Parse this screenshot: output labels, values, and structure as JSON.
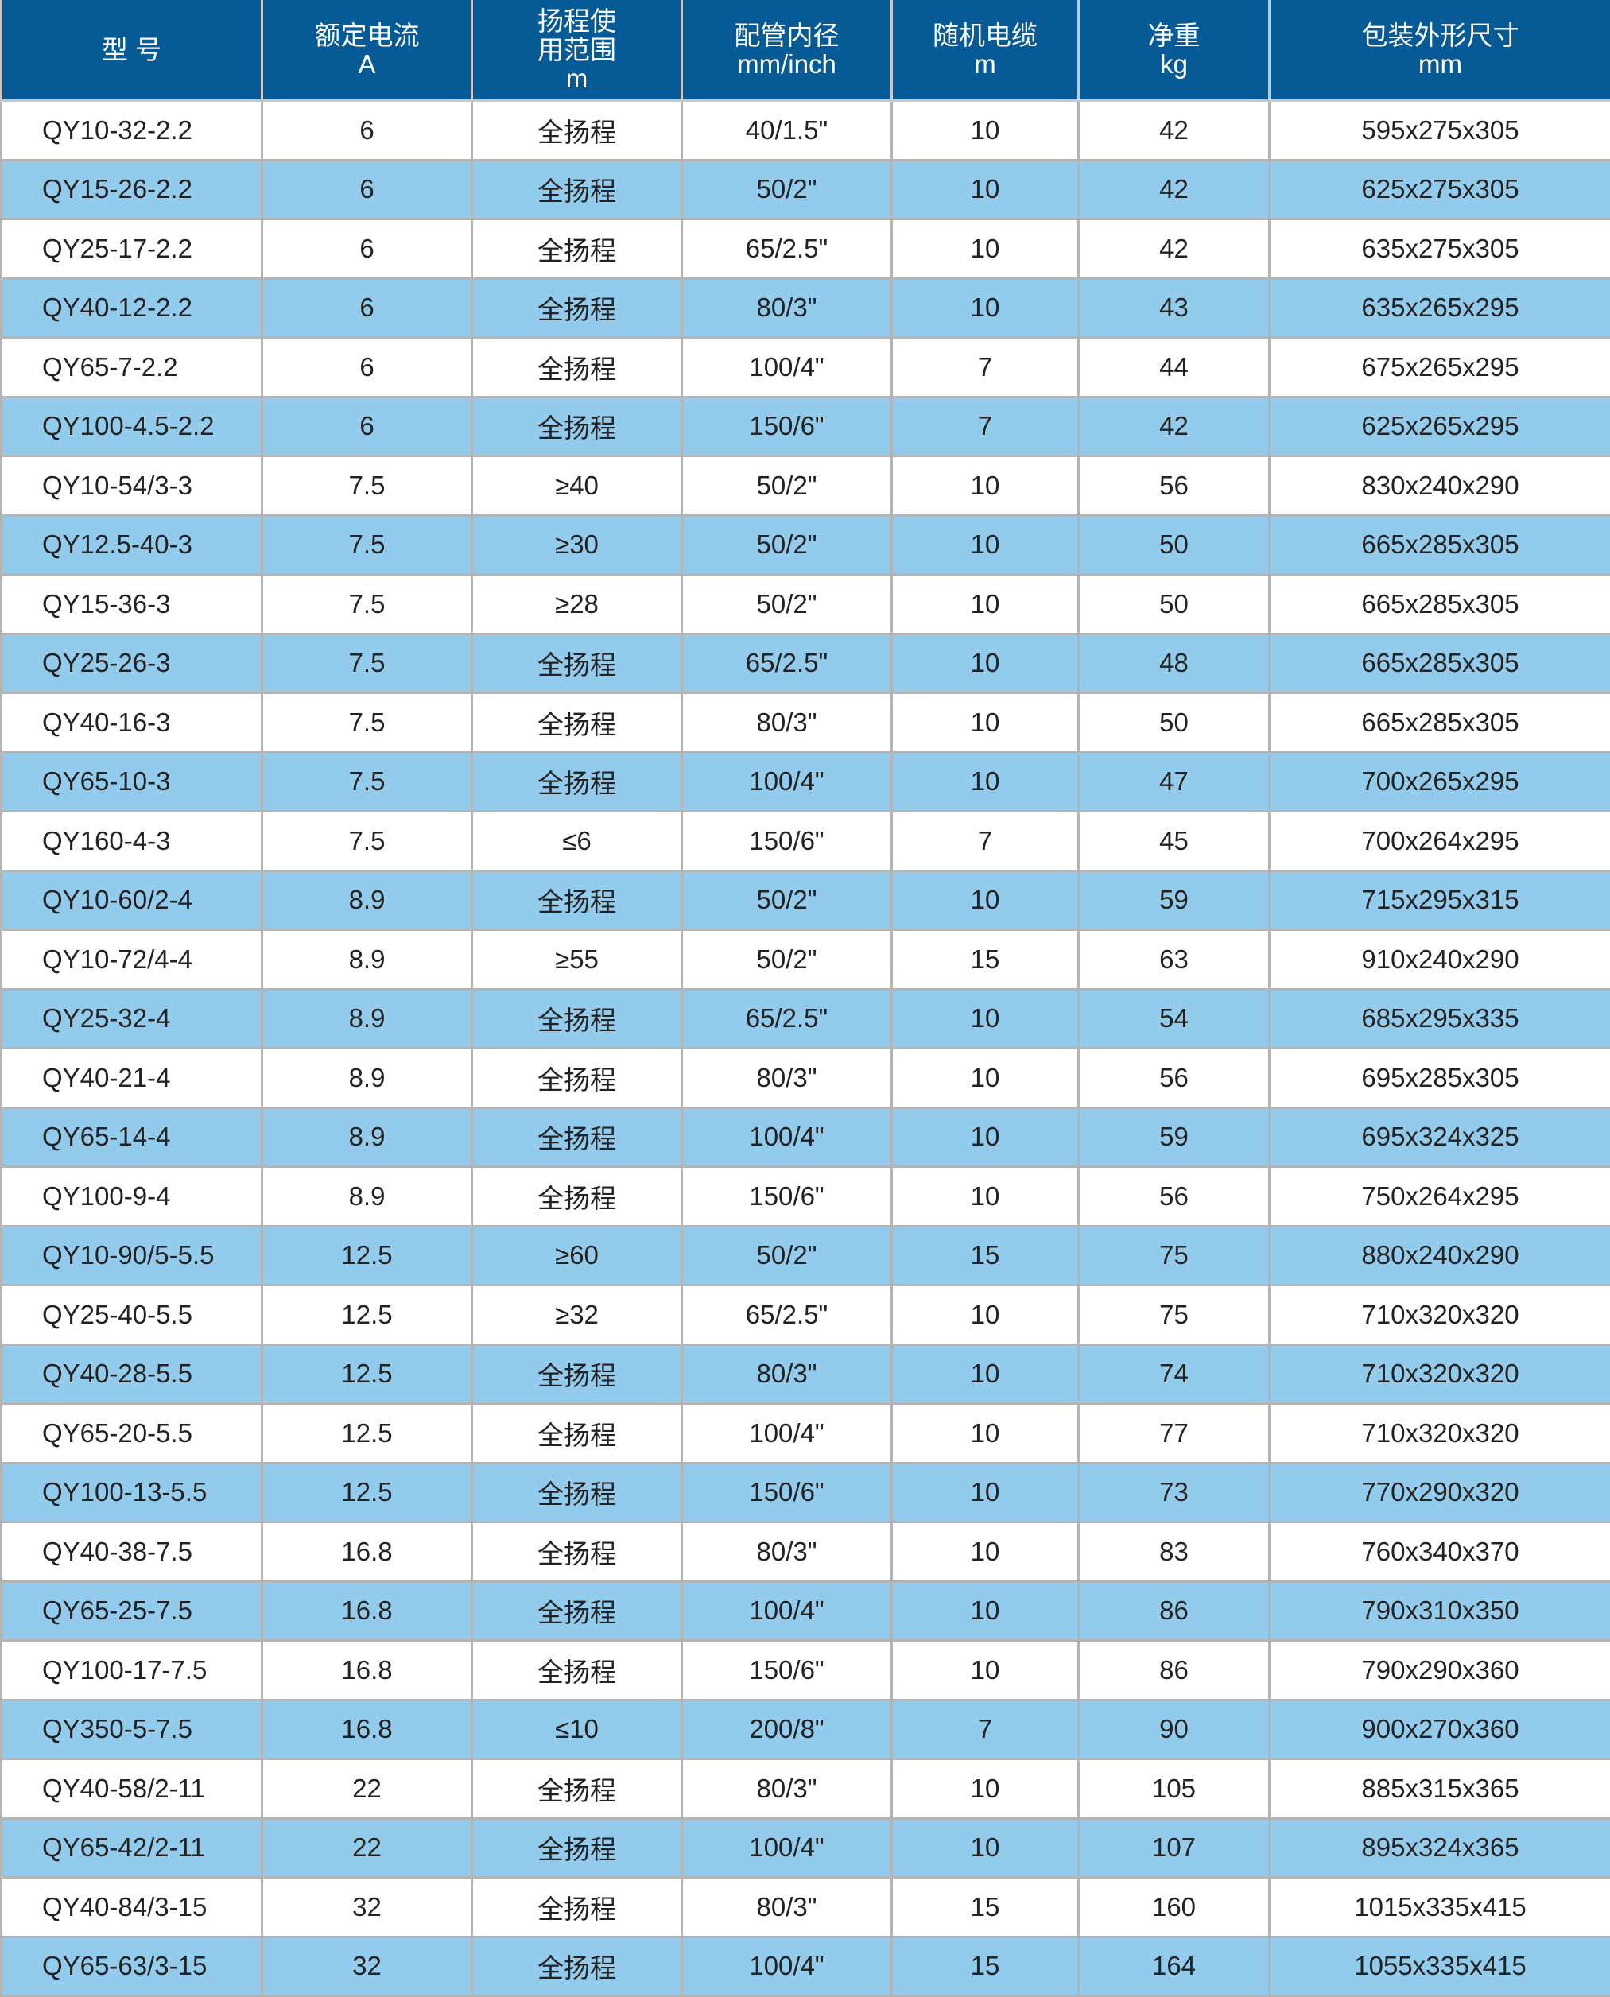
{
  "colors": {
    "header_bg": "#065a96",
    "alt_row_bg": "#93cbec",
    "row_bg": "#ffffff"
  },
  "headers": [
    [
      "型 号"
    ],
    [
      "额定电流",
      "A"
    ],
    [
      "扬程使",
      "用范围",
      "m"
    ],
    [
      "配管内径",
      "mm/inch"
    ],
    [
      "随机电缆",
      "m"
    ],
    [
      "净重",
      "kg"
    ],
    [
      "包装外形尺寸",
      "mm"
    ]
  ],
  "rows": [
    [
      "QY10-32-2.2",
      "6",
      "全扬程",
      "40/1.5\"",
      "10",
      "42",
      "595x275x305"
    ],
    [
      "QY15-26-2.2",
      "6",
      "全扬程",
      "50/2\"",
      "10",
      "42",
      "625x275x305"
    ],
    [
      "QY25-17-2.2",
      "6",
      "全扬程",
      "65/2.5\"",
      "10",
      "42",
      "635x275x305"
    ],
    [
      "QY40-12-2.2",
      "6",
      "全扬程",
      "80/3\"",
      "10",
      "43",
      "635x265x295"
    ],
    [
      "QY65-7-2.2",
      "6",
      "全扬程",
      "100/4\"",
      "7",
      "44",
      "675x265x295"
    ],
    [
      "QY100-4.5-2.2",
      "6",
      "全扬程",
      "150/6\"",
      "7",
      "42",
      "625x265x295"
    ],
    [
      "QY10-54/3-3",
      "7.5",
      "≥40",
      "50/2\"",
      "10",
      "56",
      "830x240x290"
    ],
    [
      "QY12.5-40-3",
      "7.5",
      "≥30",
      "50/2\"",
      "10",
      "50",
      "665x285x305"
    ],
    [
      "QY15-36-3",
      "7.5",
      "≥28",
      "50/2\"",
      "10",
      "50",
      "665x285x305"
    ],
    [
      "QY25-26-3",
      "7.5",
      "全扬程",
      "65/2.5\"",
      "10",
      "48",
      "665x285x305"
    ],
    [
      "QY40-16-3",
      "7.5",
      "全扬程",
      "80/3\"",
      "10",
      "50",
      "665x285x305"
    ],
    [
      "QY65-10-3",
      "7.5",
      "全扬程",
      "100/4\"",
      "10",
      "47",
      "700x265x295"
    ],
    [
      "QY160-4-3",
      "7.5",
      "≤6",
      "150/6\"",
      "7",
      "45",
      "700x264x295"
    ],
    [
      "QY10-60/2-4",
      "8.9",
      "全扬程",
      "50/2\"",
      "10",
      "59",
      "715x295x315"
    ],
    [
      "QY10-72/4-4",
      "8.9",
      "≥55",
      "50/2\"",
      "15",
      "63",
      "910x240x290"
    ],
    [
      "QY25-32-4",
      "8.9",
      "全扬程",
      "65/2.5\"",
      "10",
      "54",
      "685x295x335"
    ],
    [
      "QY40-21-4",
      "8.9",
      "全扬程",
      "80/3\"",
      "10",
      "56",
      "695x285x305"
    ],
    [
      "QY65-14-4",
      "8.9",
      "全扬程",
      "100/4\"",
      "10",
      "59",
      "695x324x325"
    ],
    [
      "QY100-9-4",
      "8.9",
      "全扬程",
      "150/6\"",
      "10",
      "56",
      "750x264x295"
    ],
    [
      "QY10-90/5-5.5",
      "12.5",
      "≥60",
      "50/2\"",
      "15",
      "75",
      "880x240x290"
    ],
    [
      "QY25-40-5.5",
      "12.5",
      "≥32",
      "65/2.5\"",
      "10",
      "75",
      "710x320x320"
    ],
    [
      "QY40-28-5.5",
      "12.5",
      "全扬程",
      "80/3\"",
      "10",
      "74",
      "710x320x320"
    ],
    [
      "QY65-20-5.5",
      "12.5",
      "全扬程",
      "100/4\"",
      "10",
      "77",
      "710x320x320"
    ],
    [
      "QY100-13-5.5",
      "12.5",
      "全扬程",
      "150/6\"",
      "10",
      "73",
      "770x290x320"
    ],
    [
      "QY40-38-7.5",
      "16.8",
      "全扬程",
      "80/3\"",
      "10",
      "83",
      "760x340x370"
    ],
    [
      "QY65-25-7.5",
      "16.8",
      "全扬程",
      "100/4\"",
      "10",
      "86",
      "790x310x350"
    ],
    [
      "QY100-17-7.5",
      "16.8",
      "全扬程",
      "150/6\"",
      "10",
      "86",
      "790x290x360"
    ],
    [
      "QY350-5-7.5",
      "16.8",
      "≤10",
      "200/8\"",
      "7",
      "90",
      "900x270x360"
    ],
    [
      "QY40-58/2-11",
      "22",
      "全扬程",
      "80/3\"",
      "10",
      "105",
      "885x315x365"
    ],
    [
      "QY65-42/2-11",
      "22",
      "全扬程",
      "100/4\"",
      "10",
      "107",
      "895x324x365"
    ],
    [
      "QY40-84/3-15",
      "32",
      "全扬程",
      "80/3\"",
      "15",
      "160",
      "1015x335x415"
    ],
    [
      "QY65-63/3-15",
      "32",
      "全扬程",
      "100/4\"",
      "15",
      "164",
      "1055x335x415"
    ]
  ]
}
